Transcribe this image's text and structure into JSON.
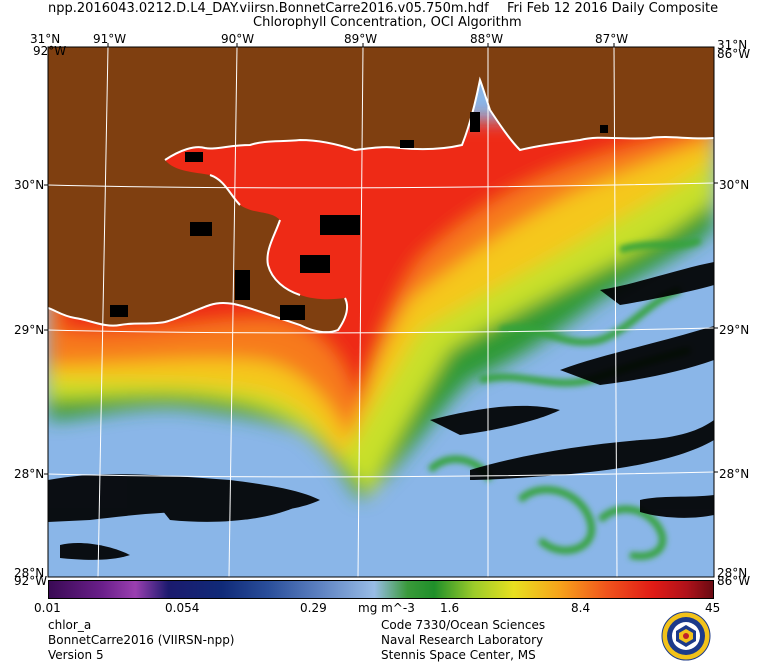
{
  "header": {
    "filename": "npp.2016043.0212.D.L4_DAY.viirsn.BonnetCarre2016.v05.750m.hdf",
    "date": "Fri Feb 12 2016 Daily Composite",
    "product": "Chlorophyll Concentration, OCI Algorithm"
  },
  "map": {
    "top_lon_labels": [
      "91°W",
      "90°W",
      "89°W",
      "88°W",
      "87°W"
    ],
    "corner_top_left": "31°N",
    "corner_top_left_lon": "92°W",
    "corner_top_right": "31°N",
    "corner_top_right_lon": "86°W",
    "left_lat_labels": [
      "30°N",
      "29°N",
      "28°N"
    ],
    "right_lat_labels": [
      "30°N",
      "29°N",
      "28°N"
    ],
    "corner_bottom_left": "28°N",
    "corner_bottom_left_lon": "92°W",
    "corner_bottom_right": "28°N",
    "corner_bottom_right_lon": "86°W",
    "colors": {
      "land": "#7f3f10",
      "ocean_low": "#8ab6e8",
      "ocean_mid": "#3aa03a",
      "ocean_high": "#f2361a",
      "cloud": "#000000",
      "coast": "#ffffff"
    }
  },
  "colorbar": {
    "ticks": [
      "0.01",
      "0.054",
      "0.29",
      "1.6",
      "8.4",
      "45"
    ],
    "units": "mg m^-3",
    "scale": "log"
  },
  "footer": {
    "left": [
      "chlor_a",
      "BonnetCarre2016 (VIIRSN-npp)",
      "Version 5"
    ],
    "right": [
      "Code 7330/Ocean Sciences",
      "Naval Research Laboratory",
      "Stennis Space Center, MS"
    ]
  },
  "logo": {
    "name": "nrl-seal"
  }
}
